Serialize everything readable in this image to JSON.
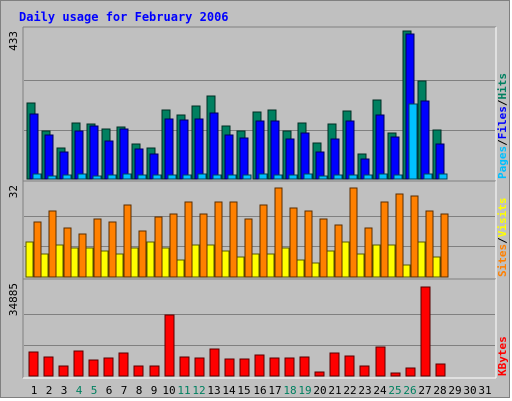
{
  "chart_data": {
    "type": "bar",
    "title": "Daily usage for February 2006",
    "categories": [
      "1",
      "2",
      "3",
      "4",
      "5",
      "6",
      "7",
      "8",
      "9",
      "10",
      "11",
      "12",
      "13",
      "14",
      "15",
      "16",
      "17",
      "18",
      "19",
      "20",
      "21",
      "22",
      "23",
      "24",
      "25",
      "26",
      "27",
      "28",
      "29",
      "30",
      "31"
    ],
    "weekend_days": [
      "4",
      "5",
      "11",
      "12",
      "18",
      "19",
      "25",
      "26"
    ],
    "panels": [
      {
        "id": "hits-panel",
        "max_label": "433",
        "ylim": [
          0,
          433
        ],
        "legend": [
          {
            "label": "Pages",
            "color": "#00c0ff"
          },
          {
            "label": "/",
            "color": "#000000"
          },
          {
            "label": "Files",
            "color": "#0000ff"
          },
          {
            "label": "/",
            "color": "#000000"
          },
          {
            "label": "Hits",
            "color": "#008060"
          }
        ],
        "series": [
          {
            "name": "Hits",
            "color": "#008060",
            "values": [
              221,
              140,
              92,
              163,
              160,
              147,
              152,
              102,
              91,
              201,
              187,
              214,
              243,
              156,
              140,
              197,
              203,
              140,
              163,
              106,
              161,
              200,
              72,
              232,
              136,
              432,
              287,
              143,
              null,
              null,
              null
            ]
          },
          {
            "name": "Files",
            "color": "#0000ff",
            "values": [
              190,
              129,
              79,
              141,
              154,
              112,
              147,
              87,
              73,
              176,
              172,
              177,
              193,
              130,
              121,
              169,
              171,
              116,
              134,
              79,
              117,
              171,
              59,
              187,
              124,
              423,
              229,
              102,
              null,
              null,
              null
            ]
          },
          {
            "name": "Pages",
            "color": "#00c0ff",
            "values": [
              14,
              10,
              12,
              14,
              10,
              12,
              14,
              11,
              12,
              13,
              12,
              14,
              11,
              13,
              11,
              14,
              12,
              12,
              14,
              10,
              12,
              13,
              11,
              15,
              12,
              219,
              15,
              14,
              null,
              null,
              null
            ]
          }
        ]
      },
      {
        "id": "visits-panel",
        "max_label": "32",
        "ylim": [
          0,
          32
        ],
        "legend": [
          {
            "label": "Sites",
            "color": "#ff8000"
          },
          {
            "label": "/",
            "color": "#000000"
          },
          {
            "label": "Visits",
            "color": "#ffff00"
          }
        ],
        "series": [
          {
            "name": "Visits",
            "color": "#ffff00",
            "values": [
              12,
              8,
              11,
              10,
              10,
              9,
              8,
              10,
              12,
              10,
              6,
              11,
              11,
              9,
              7,
              8,
              8,
              10,
              6,
              5,
              9,
              12,
              8,
              11,
              11,
              4,
              12,
              7,
              null,
              null,
              null
            ]
          },
          {
            "name": "Sites",
            "color": "#ff8000",
            "values": [
              19,
              23,
              17,
              15,
              20,
              19,
              25,
              16,
              21,
              22,
              26,
              22,
              26,
              26,
              20,
              25,
              31,
              24,
              23,
              20,
              18,
              31,
              17,
              26,
              29,
              28,
              23,
              22,
              null,
              null,
              null
            ]
          }
        ]
      },
      {
        "id": "kbytes-panel",
        "max_label": "34885",
        "ylim": [
          0,
          34885
        ],
        "legend": [
          {
            "label": "KBytes",
            "color": "#ff0000"
          }
        ],
        "series": [
          {
            "name": "KBytes",
            "color": "#ff0000",
            "values": [
              9000,
              7100,
              3700,
              9500,
              6100,
              6800,
              8800,
              3700,
              3700,
              23000,
              7100,
              6900,
              10000,
              6200,
              6300,
              7800,
              6900,
              6900,
              7000,
              1500,
              8800,
              7500,
              3600,
              10900,
              1200,
              2900,
              33400,
              4500,
              null,
              null,
              null
            ]
          }
        ]
      }
    ]
  }
}
